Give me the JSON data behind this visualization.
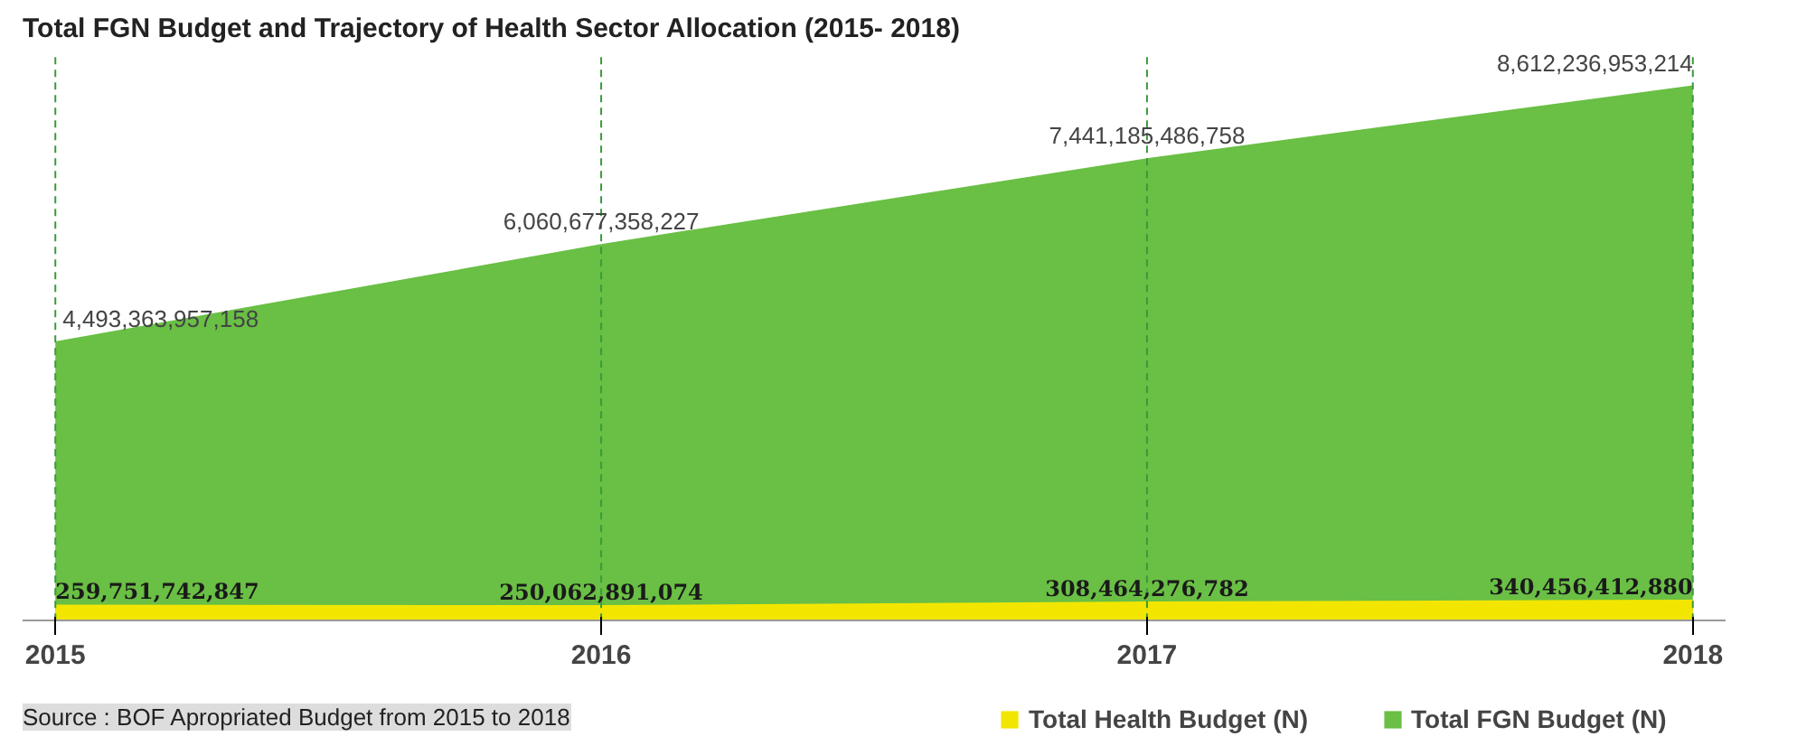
{
  "chart_data": {
    "type": "area",
    "title": "Total FGN Budget and Trajectory of Health Sector Allocation (2015- 2018)",
    "categories": [
      "2015",
      "2016",
      "2017",
      "2018"
    ],
    "series": [
      {
        "name": "Total Health Budget (N)",
        "color": "#f2e600",
        "values": [
          259751742847,
          250062891074,
          308464276782,
          340456412880
        ],
        "value_labels": [
          "259,751,742,847",
          "250,062,891,074",
          "308,464,276,782",
          "340,456,412,880"
        ]
      },
      {
        "name": "Total FGN Budget (N)",
        "color": "#6abf45",
        "values": [
          4493363957158,
          6060677358227,
          7441185486758,
          8612236953214
        ],
        "value_labels": [
          "4,493,363,957,158",
          "6,060,677,358,227",
          "7,441,185,486,758",
          "8,612,236,953,214"
        ]
      }
    ],
    "data_labels": true,
    "grid": "x",
    "legend": "bottom",
    "annotations": [
      "Source : BOF Apropriated Budget from 2015 to 2018"
    ]
  }
}
